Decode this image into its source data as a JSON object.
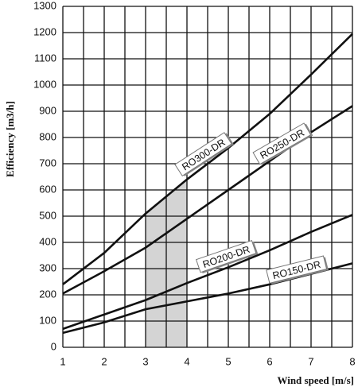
{
  "chart_data": {
    "type": "line",
    "x_label": "Wind speed  [m/s]",
    "y_label": "Efficiency [m3/h]",
    "x": [
      1,
      2,
      3,
      4,
      5,
      6,
      7,
      8
    ],
    "series": [
      {
        "name": "RO300-DR",
        "color": "#111111",
        "values": [
          240,
          360,
          510,
          640,
          760,
          890,
          1040,
          1195
        ]
      },
      {
        "name": "RO250-DR",
        "color": "#111111",
        "values": [
          205,
          290,
          380,
          490,
          600,
          710,
          820,
          920
        ]
      },
      {
        "name": "RO200-DR",
        "color": "#111111",
        "values": [
          70,
          125,
          180,
          245,
          305,
          370,
          440,
          505
        ]
      },
      {
        "name": "RO150-DR",
        "color": "#111111",
        "values": [
          55,
          95,
          145,
          175,
          205,
          240,
          280,
          320
        ]
      }
    ],
    "xlim": [
      1,
      8
    ],
    "ylim": [
      0,
      1300
    ],
    "xticks": [
      1,
      2,
      3,
      4,
      5,
      6,
      7,
      8
    ],
    "xminorticks": [
      1.5,
      2.5,
      3.5,
      4.5,
      5.5,
      6.5,
      7.5
    ],
    "yticks": [
      0,
      100,
      200,
      300,
      400,
      500,
      600,
      700,
      800,
      900,
      1000,
      1100,
      1200,
      1300
    ],
    "grid": true,
    "shaded_range": [
      3,
      4
    ],
    "shaded_color": "#d4d4d4"
  }
}
